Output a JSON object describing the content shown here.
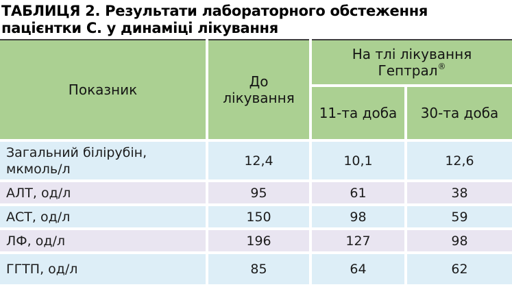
{
  "colors": {
    "header_green": "#abd092",
    "row_blue": "#ddeef7",
    "row_lavender": "#e9e5f1",
    "top_border": "#3e3e3e",
    "text": "#1c1c1c"
  },
  "caption": {
    "line1": "ТАБЛИЦЯ 2. Результати лабораторного обстеження",
    "line2": "пацієнтки С. у динаміці лікування"
  },
  "table": {
    "header": {
      "col_parameter": "Показник",
      "col_before": "До лікування",
      "group_treatment_line1": "На тлі лікування",
      "group_treatment_line2": "Гептрал",
      "registered_mark": "®",
      "col_day11": "11-та доба",
      "col_day30": "30-та доба"
    },
    "rows": [
      {
        "parameter": "Загальний білірубін, мкмоль/л",
        "before": "12,4",
        "day11": "10,1",
        "day30": "12,6"
      },
      {
        "parameter": "АЛТ, од/л",
        "before": "95",
        "day11": "61",
        "day30": "38"
      },
      {
        "parameter": "АСТ, од/л",
        "before": "150",
        "day11": "98",
        "day30": "59"
      },
      {
        "parameter": "ЛФ, од/л",
        "before": "196",
        "day11": "127",
        "day30": "98"
      },
      {
        "parameter": "ГГТП, од/л",
        "before": "85",
        "day11": "64",
        "day30": "62"
      }
    ]
  },
  "chart_data": {
    "type": "table",
    "title": "ТАБЛИЦЯ 2. Результати лабораторного обстеження пацієнтки С. у динаміці лікування",
    "columns": [
      "Показник",
      "До лікування",
      "На тлі лікування Гептрал® — 11-та доба",
      "На тлі лікування Гептрал® — 30-та доба"
    ],
    "rows": [
      [
        "Загальний білірубін, мкмоль/л",
        12.4,
        10.1,
        12.6
      ],
      [
        "АЛТ, од/л",
        95,
        61,
        38
      ],
      [
        "АСТ, од/л",
        150,
        98,
        59
      ],
      [
        "ЛФ, од/л",
        196,
        127,
        98
      ],
      [
        "ГГТП, од/л",
        85,
        64,
        62
      ]
    ]
  }
}
